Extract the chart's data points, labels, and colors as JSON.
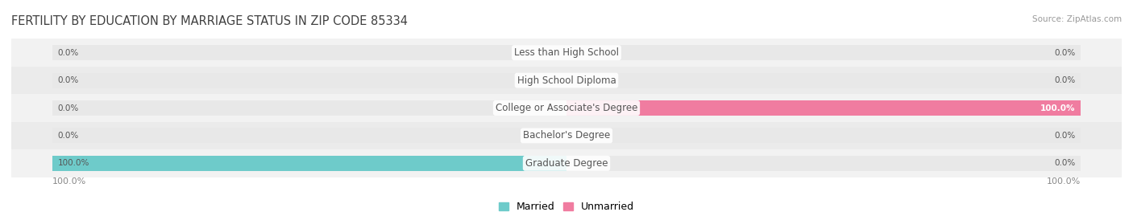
{
  "title": "FERTILITY BY EDUCATION BY MARRIAGE STATUS IN ZIP CODE 85334",
  "source": "Source: ZipAtlas.com",
  "categories": [
    "Less than High School",
    "High School Diploma",
    "College or Associate's Degree",
    "Bachelor's Degree",
    "Graduate Degree"
  ],
  "married_values": [
    0.0,
    0.0,
    0.0,
    0.0,
    100.0
  ],
  "unmarried_values": [
    0.0,
    0.0,
    100.0,
    0.0,
    0.0
  ],
  "married_color": "#6ecbca",
  "unmarried_color": "#f07ca0",
  "bar_bg_color": "#e8e8e8",
  "row_bg_even": "#f2f2f2",
  "row_bg_odd": "#ebebeb",
  "label_color": "#555555",
  "title_color": "#404040",
  "source_color": "#999999",
  "axis_label_color": "#888888",
  "max_value": 100.0,
  "bar_height": 0.55,
  "legend_married": "Married",
  "legend_unmarried": "Unmarried"
}
